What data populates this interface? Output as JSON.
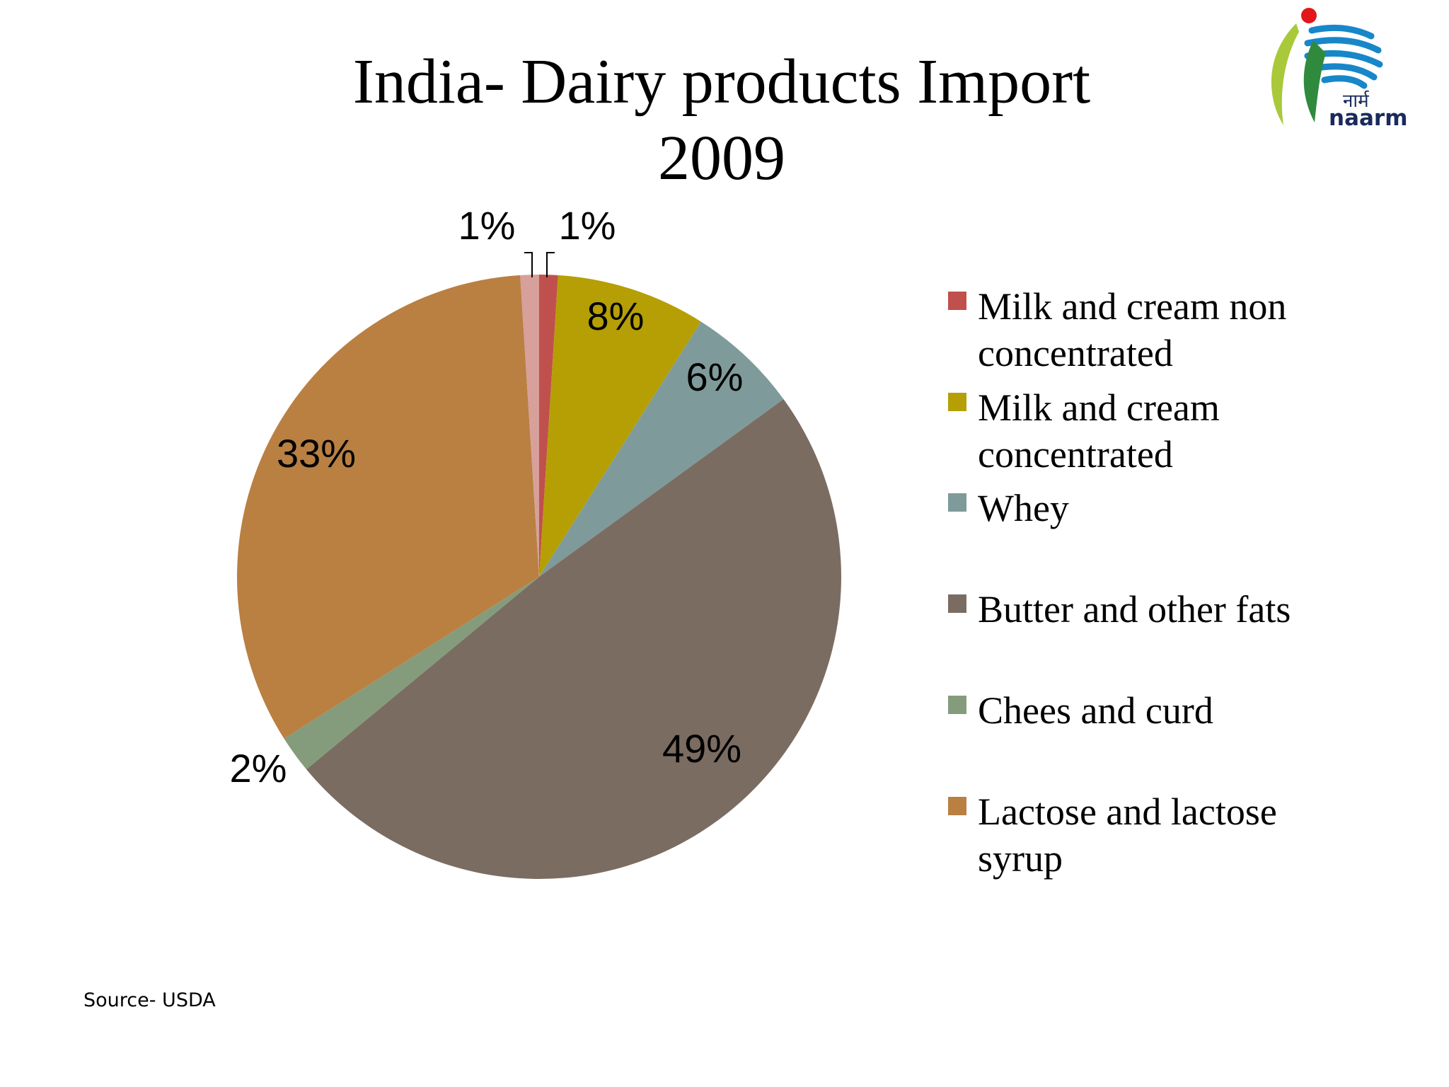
{
  "chart_data": {
    "type": "pie",
    "title": [
      "India- Dairy products Import",
      "2009"
    ],
    "legend_position": "right",
    "slices": [
      {
        "name": "Milk and cream non concentrated",
        "value": 1,
        "label": "1%",
        "color": "#c0504d"
      },
      {
        "name": "Milk and cream concentrated",
        "value": 8,
        "label": "8%",
        "color": "#b59f05"
      },
      {
        "name": "Whey",
        "value": 6,
        "label": "6%",
        "color": "#7f9a9a"
      },
      {
        "name": "Butter and other fats",
        "value": 49,
        "label": "49%",
        "color": "#7b6c62"
      },
      {
        "name": "Chees and curd",
        "value": 2,
        "label": "2%",
        "color": "#849c7c"
      },
      {
        "name": "Lactose and lactose syrup",
        "value": 33,
        "label": "33%",
        "color": "#b98042"
      },
      {
        "name": "",
        "value": 1,
        "label": "1%",
        "color": "#d7a09a"
      }
    ],
    "legend": [
      {
        "lines": [
          "Milk and cream non",
          "concentrated"
        ],
        "color": "#c0504d"
      },
      {
        "lines": [
          "Milk and cream",
          "concentrated"
        ],
        "color": "#b59f05"
      },
      {
        "lines": [
          "Whey"
        ],
        "color": "#7f9a9a"
      },
      {
        "lines": [
          "Butter and other fats"
        ],
        "color": "#7b6c62"
      },
      {
        "lines": [
          "Chees and curd"
        ],
        "color": "#849c7c"
      },
      {
        "lines": [
          "Lactose and lactose",
          "syrup"
        ],
        "color": "#b98042"
      }
    ]
  },
  "logo": {
    "script_text": "नार्म",
    "text": "naarm"
  },
  "source": "Source- USDA"
}
